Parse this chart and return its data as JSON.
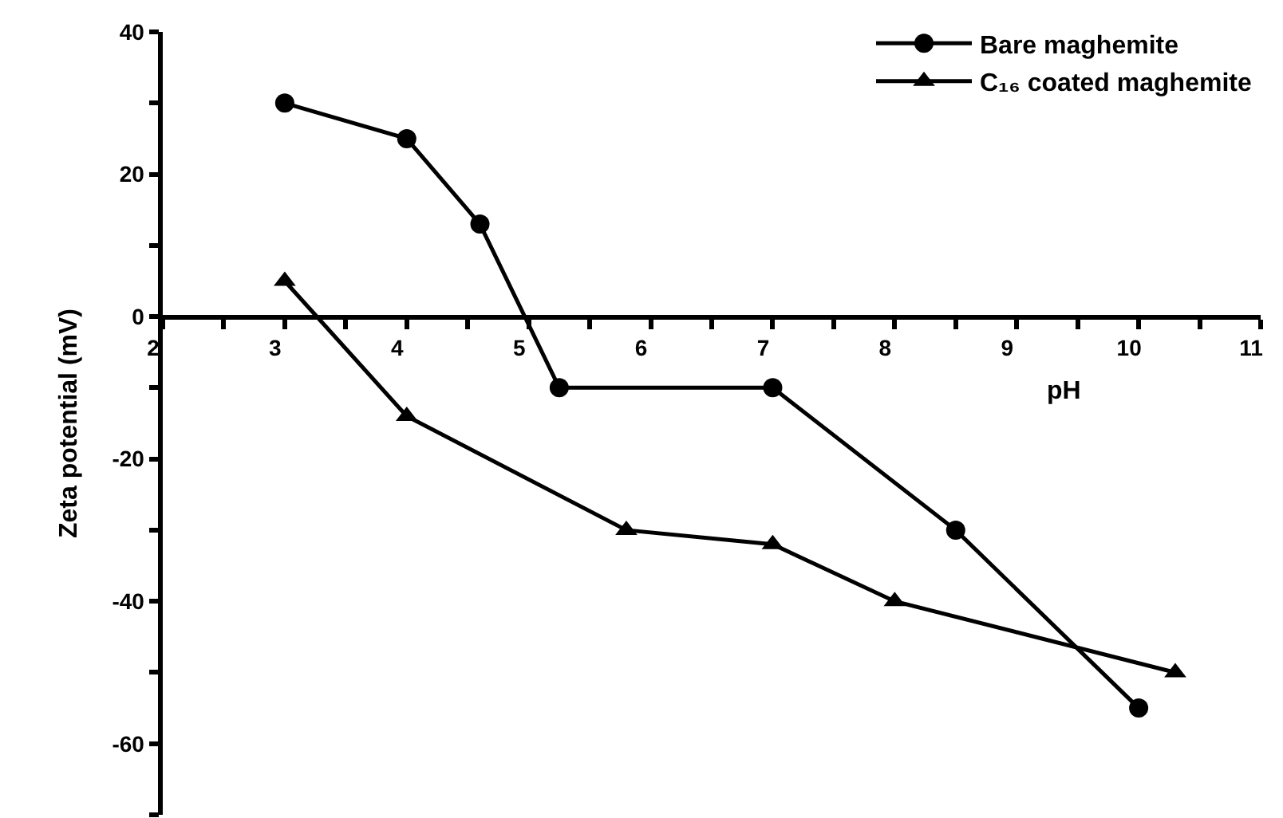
{
  "chart_data": {
    "type": "line",
    "xlabel": "pH",
    "ylabel": "Zeta potential (mV)",
    "series": [
      {
        "name": "Bare maghemite",
        "color": "#000000",
        "marker": "circle",
        "x": [
          3,
          4,
          4.6,
          5.25,
          7,
          8.5,
          10
        ],
        "values": [
          30,
          25,
          13,
          -10,
          -10,
          -30,
          -55
        ]
      },
      {
        "name": "C₁₆ coated maghemite",
        "color": "#000000",
        "marker": "triangle",
        "x": [
          3,
          4,
          5.8,
          7,
          8,
          10.3
        ],
        "values": [
          5,
          -14,
          -30,
          -32,
          -40,
          -50
        ]
      }
    ],
    "xlim": [
      2,
      11
    ],
    "xticks": [
      2,
      {
        "value": 2.5,
        "label": null
      },
      3,
      {
        "value": 3.5,
        "label": null
      },
      4,
      {
        "value": 4.5,
        "label": null
      },
      5,
      {
        "value": 5.5,
        "label": null
      },
      6,
      {
        "value": 6.5,
        "label": null
      },
      7,
      {
        "value": 7.5,
        "label": null
      },
      8,
      {
        "value": 8.5,
        "label": null
      },
      9,
      {
        "value": 9.5,
        "label": null
      },
      10,
      {
        "value": 10.5,
        "label": null
      },
      11
    ],
    "ylim": [
      -70,
      40
    ],
    "yticks": [
      {
        "value": -70,
        "label": null
      },
      -60,
      {
        "value": -50,
        "label": null
      },
      -40,
      {
        "value": -30,
        "label": null
      },
      -20,
      {
        "value": -10,
        "label": null
      },
      0,
      {
        "value": 10,
        "label": null
      },
      20,
      {
        "value": 30,
        "label": null
      },
      40
    ],
    "legend": "top right",
    "line_style": "solid"
  }
}
